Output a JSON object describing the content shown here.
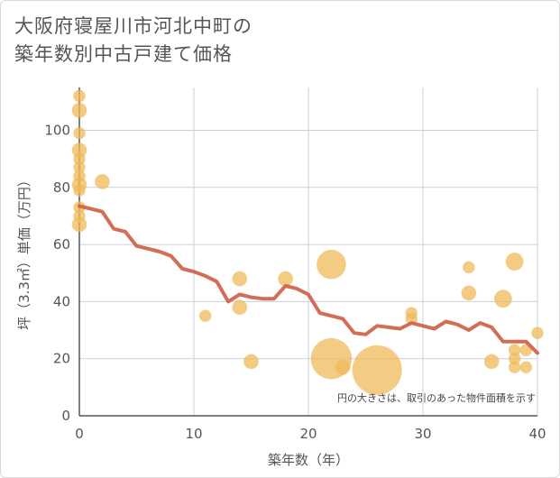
{
  "title_line1": "大阪府寝屋川市河北中町の",
  "title_line2": "築年数別中古戸建て価格",
  "chart_data": {
    "type": "scatter",
    "title": "大阪府寝屋川市河北中町の築年数別中古戸建て価格",
    "xlabel": "築年数（年）",
    "ylabel": "坪（3.3㎡）単価（万円）",
    "xlim": [
      0,
      40
    ],
    "ylim": [
      0,
      115
    ],
    "xticks": [
      0,
      10,
      20,
      30,
      40
    ],
    "yticks": [
      0,
      20,
      40,
      60,
      80,
      100
    ],
    "grid": true,
    "note": "円の大きさは、取引のあった物件面積を示す",
    "colors": {
      "bubble": "#f0b95a",
      "line": "#d0654d",
      "grid": "#c8d0dc",
      "axis": "#555555"
    },
    "bubbles": [
      {
        "x": 0,
        "y": 112,
        "size": 2
      },
      {
        "x": 0,
        "y": 107,
        "size": 3
      },
      {
        "x": 0,
        "y": 99,
        "size": 2
      },
      {
        "x": 0,
        "y": 93,
        "size": 3
      },
      {
        "x": 0,
        "y": 90,
        "size": 2
      },
      {
        "x": 0,
        "y": 87,
        "size": 2
      },
      {
        "x": 0,
        "y": 84,
        "size": 2
      },
      {
        "x": 0,
        "y": 81,
        "size": 3
      },
      {
        "x": 0,
        "y": 79,
        "size": 2
      },
      {
        "x": 0,
        "y": 73,
        "size": 2
      },
      {
        "x": 0,
        "y": 70,
        "size": 2
      },
      {
        "x": 0,
        "y": 67,
        "size": 3
      },
      {
        "x": 2,
        "y": 82,
        "size": 3
      },
      {
        "x": 11,
        "y": 35,
        "size": 2
      },
      {
        "x": 14,
        "y": 48,
        "size": 3
      },
      {
        "x": 14,
        "y": 38,
        "size": 3
      },
      {
        "x": 15,
        "y": 19,
        "size": 3
      },
      {
        "x": 18,
        "y": 48,
        "size": 3
      },
      {
        "x": 22,
        "y": 53,
        "size": 8
      },
      {
        "x": 22,
        "y": 20,
        "size": 12
      },
      {
        "x": 23,
        "y": 17,
        "size": 3
      },
      {
        "x": 26,
        "y": 16,
        "size": 15
      },
      {
        "x": 29,
        "y": 36,
        "size": 2
      },
      {
        "x": 29,
        "y": 34,
        "size": 2
      },
      {
        "x": 34,
        "y": 52,
        "size": 2
      },
      {
        "x": 34,
        "y": 43,
        "size": 3
      },
      {
        "x": 36,
        "y": 19,
        "size": 3
      },
      {
        "x": 37,
        "y": 41,
        "size": 4
      },
      {
        "x": 38,
        "y": 54,
        "size": 4
      },
      {
        "x": 38,
        "y": 23,
        "size": 2
      },
      {
        "x": 38,
        "y": 20,
        "size": 2
      },
      {
        "x": 38,
        "y": 17,
        "size": 2
      },
      {
        "x": 39,
        "y": 23,
        "size": 2
      },
      {
        "x": 39,
        "y": 17,
        "size": 2
      },
      {
        "x": 40,
        "y": 29,
        "size": 2
      }
    ],
    "trend": {
      "x": [
        0,
        1,
        2,
        3,
        4,
        5,
        6,
        7,
        8,
        9,
        10,
        11,
        12,
        13,
        14,
        15,
        16,
        17,
        18,
        19,
        20,
        21,
        22,
        23,
        24,
        25,
        26,
        27,
        28,
        29,
        30,
        31,
        32,
        33,
        34,
        35,
        36,
        37,
        38,
        39,
        40
      ],
      "y": [
        73.5,
        72.5,
        71.5,
        65.5,
        64.5,
        59.5,
        58.5,
        57.5,
        56,
        51.5,
        50.5,
        49,
        47,
        40,
        42.5,
        41.5,
        41,
        41,
        45.5,
        44.5,
        42.5,
        36,
        35,
        34,
        29,
        28.5,
        31.5,
        31,
        30.5,
        32.5,
        31.5,
        30.5,
        33,
        32,
        30,
        32.5,
        31,
        26,
        26,
        26,
        22
      ]
    }
  }
}
